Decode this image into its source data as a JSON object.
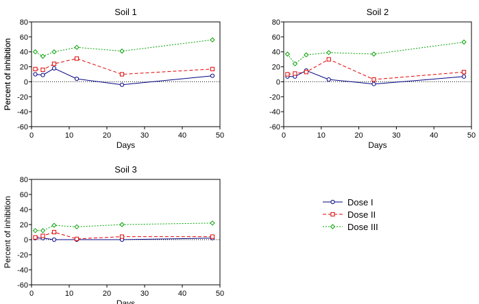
{
  "chart_data": [
    {
      "type": "line",
      "title": "Soil 1",
      "xlabel": "Days",
      "ylabel": "Percent of inhibition",
      "xlim": [
        0,
        50
      ],
      "ylim": [
        -60,
        80
      ],
      "xticks": [
        0,
        10,
        20,
        30,
        40,
        50
      ],
      "yticks": [
        -60,
        -40,
        -20,
        0,
        20,
        40,
        60,
        80
      ],
      "x": [
        1,
        3,
        6,
        12,
        24,
        48
      ],
      "series": [
        {
          "name": "Dose I",
          "values": [
            10,
            9,
            18,
            4,
            -4,
            8
          ]
        },
        {
          "name": "Dose II",
          "values": [
            17,
            16,
            24,
            31,
            10,
            17
          ]
        },
        {
          "name": "Dose III",
          "values": [
            40,
            34,
            40,
            46,
            41,
            56
          ]
        }
      ]
    },
    {
      "type": "line",
      "title": "Soil 2",
      "xlabel": "Days",
      "ylabel": "Percent of inhibition",
      "xlim": [
        0,
        50
      ],
      "ylim": [
        -60,
        80
      ],
      "xticks": [
        0,
        10,
        20,
        30,
        40,
        50
      ],
      "yticks": [
        -60,
        -40,
        -20,
        0,
        20,
        40,
        60,
        80
      ],
      "x": [
        1,
        3,
        6,
        12,
        24,
        48
      ],
      "series": [
        {
          "name": "Dose I",
          "values": [
            7,
            7,
            15,
            3,
            -3,
            7
          ]
        },
        {
          "name": "Dose II",
          "values": [
            10,
            11,
            13,
            30,
            3,
            13
          ]
        },
        {
          "name": "Dose III",
          "values": [
            37,
            24,
            36,
            39,
            37,
            53
          ]
        }
      ]
    },
    {
      "type": "line",
      "title": "Soil 3",
      "xlabel": "Days",
      "ylabel": "Percent of inhibition",
      "xlim": [
        0,
        50
      ],
      "ylim": [
        -60,
        80
      ],
      "xticks": [
        0,
        10,
        20,
        30,
        40,
        50
      ],
      "yticks": [
        -60,
        -40,
        -20,
        0,
        20,
        40,
        60,
        80
      ],
      "x": [
        1,
        3,
        6,
        12,
        24,
        48
      ],
      "series": [
        {
          "name": "Dose I",
          "values": [
            2,
            2,
            0,
            0,
            0,
            2
          ]
        },
        {
          "name": "Dose II",
          "values": [
            3,
            5,
            10,
            1,
            4,
            4
          ]
        },
        {
          "name": "Dose III",
          "values": [
            12,
            12,
            19,
            17,
            20,
            22
          ]
        }
      ]
    }
  ],
  "legend": {
    "items": [
      "Dose I",
      "Dose II",
      "Dose III"
    ]
  },
  "colors": {
    "dose_i": "#000080",
    "dose_ii": "#e00000",
    "dose_iii": "#00a000"
  },
  "markers": {
    "dose_i": "circle",
    "dose_ii": "square",
    "dose_iii": "diamond"
  }
}
